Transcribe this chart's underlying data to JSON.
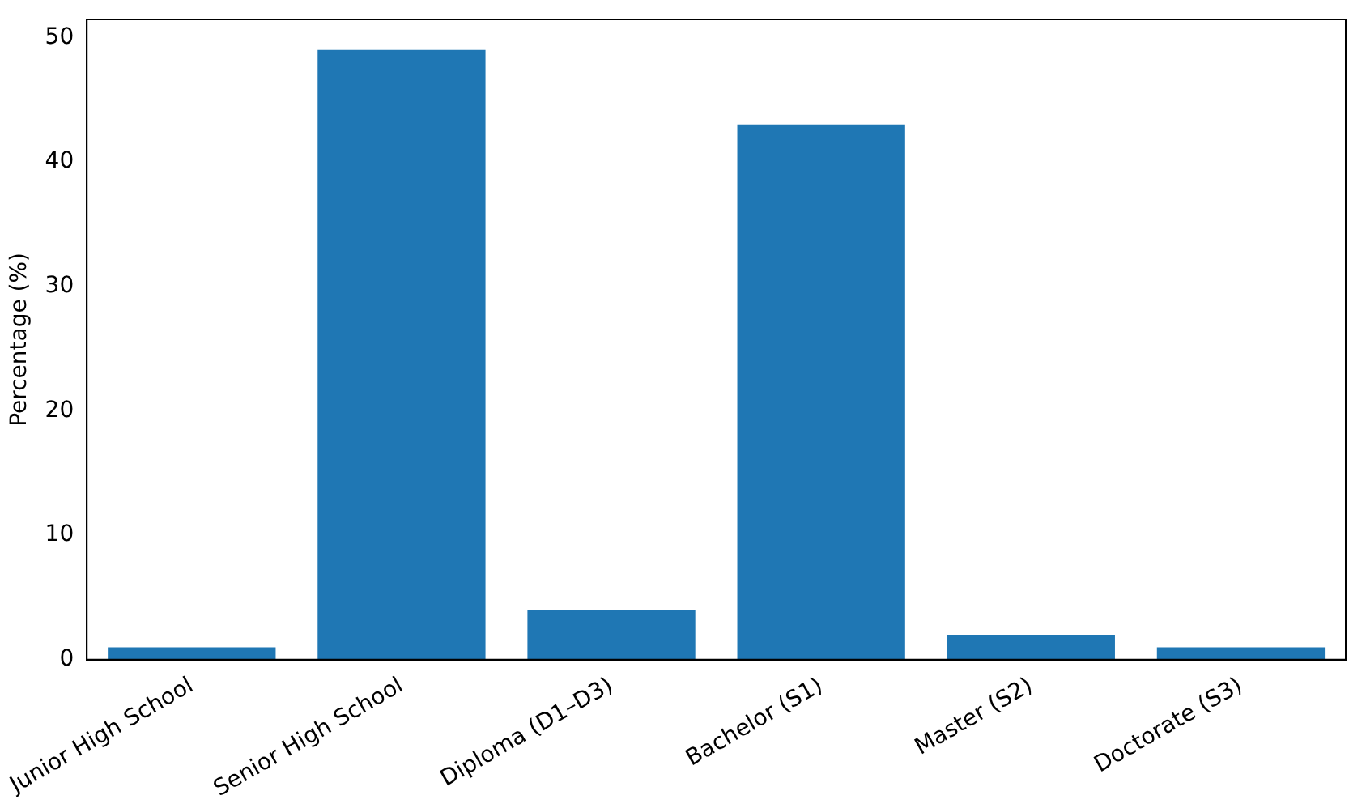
{
  "chart_data": {
    "type": "bar",
    "ylabel": "Percentage (%)",
    "categories": [
      "Junior High School",
      "Senior High School",
      "Diploma (D1–D3)",
      "Bachelor (S1)",
      "Master (S2)",
      "Doctorate (S3)"
    ],
    "values": [
      1,
      49,
      4,
      43,
      2,
      1
    ],
    "color": "#1f77b4",
    "ylim": [
      0,
      51.45
    ],
    "yticks": [
      0,
      10,
      20,
      30,
      40,
      50
    ],
    "grid": false,
    "legend": false
  }
}
